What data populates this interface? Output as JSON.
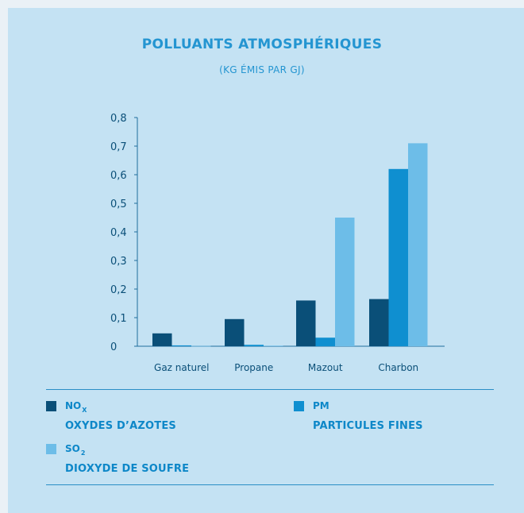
{
  "title": "POLLUANTS ATMOSPHÉRIQUES",
  "subtitle": "(KG ÉMIS PAR GJ)",
  "colors": {
    "background": "#c4e2f3",
    "nox": "#0a4f78",
    "pm": "#0f8fd0",
    "so2": "#6dbde8",
    "text": "#2495d1"
  },
  "legend": [
    {
      "code": "NO",
      "sub": "X",
      "desc": "OXYDES D’AZOTES",
      "color": "#0a4f78"
    },
    {
      "code": "PM",
      "sub": "",
      "desc": "PARTICULES FINES",
      "color": "#0f8fd0"
    },
    {
      "code": "SO",
      "sub": "2",
      "desc": "DIOXYDE DE SOUFRE",
      "color": "#6dbde8"
    }
  ],
  "chart_data": {
    "type": "bar",
    "title": "POLLUANTS ATMOSPHÉRIQUES",
    "subtitle": "(KG ÉMIS PAR GJ)",
    "categories": [
      "Gaz naturel",
      "Propane",
      "Mazout",
      "Charbon"
    ],
    "series": [
      {
        "name": "NOx",
        "color": "#0a4f78",
        "values": [
          0.045,
          0.095,
          0.16,
          0.165
        ]
      },
      {
        "name": "PM",
        "color": "#0f8fd0",
        "values": [
          0.003,
          0.005,
          0.03,
          0.62
        ]
      },
      {
        "name": "SO2",
        "color": "#6dbde8",
        "values": [
          0.001,
          0.002,
          0.45,
          0.71
        ]
      }
    ],
    "ylim": [
      0,
      0.8
    ],
    "yticks": [
      0,
      0.1,
      0.2,
      0.3,
      0.4,
      0.5,
      0.6,
      0.7,
      0.8
    ],
    "ytick_labels": [
      "0",
      "0,1",
      "0,2",
      "0,3",
      "0,4",
      "0,5",
      "0,6",
      "0,7",
      "0,8"
    ],
    "xlabel": "",
    "ylabel": "",
    "grid": false,
    "legend_position": "bottom"
  }
}
